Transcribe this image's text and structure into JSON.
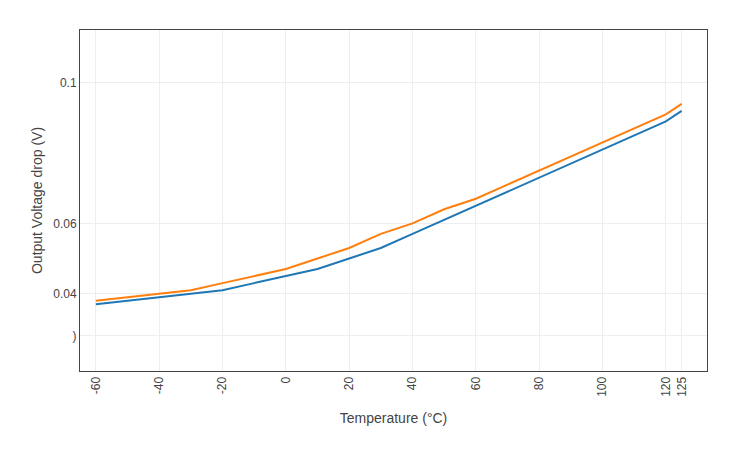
{
  "chart_data": {
    "type": "line",
    "xlabel": "Temperature (°C)",
    "ylabel": "Output Voltage drop (V)",
    "x": [
      -60,
      -50,
      -40,
      -30,
      -20,
      -10,
      0,
      10,
      20,
      30,
      40,
      50,
      60,
      70,
      80,
      90,
      100,
      110,
      120,
      125
    ],
    "series": [
      {
        "values": [
          0.037,
          0.038,
          0.039,
          0.04,
          0.041,
          0.043,
          0.045,
          0.047,
          0.05,
          0.053,
          0.057,
          0.061,
          0.065,
          0.069,
          0.073,
          0.077,
          0.081,
          0.085,
          0.089,
          0.092
        ]
      },
      {
        "values": [
          0.038,
          0.039,
          0.04,
          0.041,
          0.043,
          0.045,
          0.047,
          0.05,
          0.053,
          0.057,
          0.06,
          0.064,
          0.067,
          0.071,
          0.075,
          0.079,
          0.083,
          0.087,
          0.091,
          0.094
        ]
      }
    ],
    "xlim": [
      -65,
      133
    ],
    "ylim": [
      0.018,
      0.115
    ],
    "xticks": [
      -60,
      -40,
      -20,
      0,
      20,
      40,
      60,
      80,
      100,
      120,
      125
    ],
    "yticks": [
      {
        "value": 0.028,
        "label": ")"
      },
      0.04,
      0.06,
      0.1
    ],
    "grid": true
  }
}
